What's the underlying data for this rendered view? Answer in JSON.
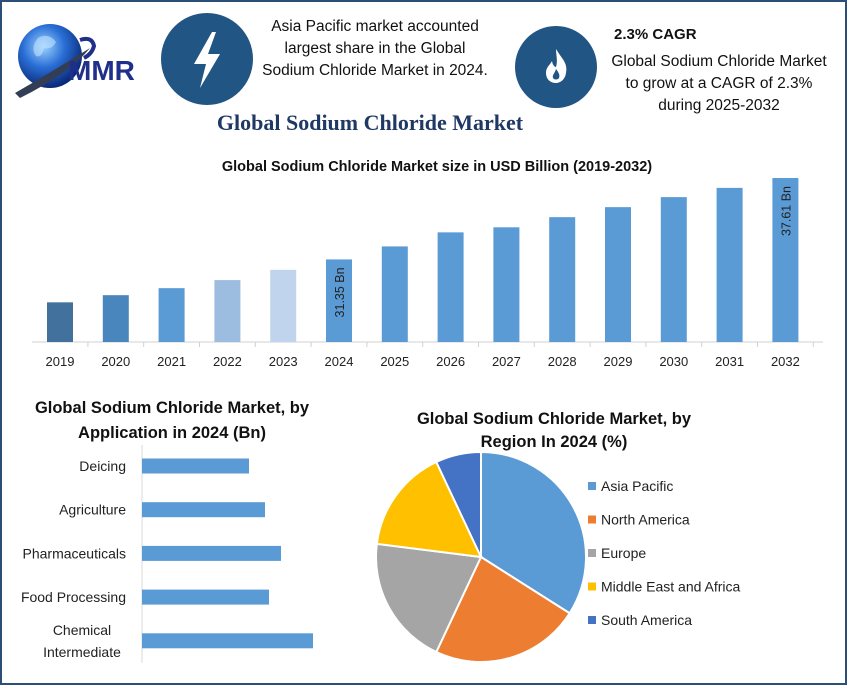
{
  "logo": {
    "text": "MMR"
  },
  "highlights": {
    "region": {
      "icon": "lightning-icon",
      "text": [
        "Asia Pacific market accounted",
        "largest share in the Global",
        "Sodium Chloride Market in 2024."
      ]
    },
    "cagr": {
      "icon": "flame-icon",
      "heading": "2.3% CAGR",
      "text": [
        "Global Sodium Chloride Market",
        "to grow at a CAGR of 2.3%",
        "during 2025-2032"
      ]
    }
  },
  "page_title": "Global Sodium Chloride Market",
  "colors": {
    "navy": "#1f3864",
    "icon_circle": "#215583",
    "bar": "#5b9bd5",
    "frame": "#2b4f78"
  },
  "chart_data": [
    {
      "type": "bar",
      "title": "Global Sodium Chloride Market size in USD Billion (2019-2032)",
      "categories": [
        "2019",
        "2020",
        "2021",
        "2022",
        "2023",
        "2024",
        "2025",
        "2026",
        "2027",
        "2028",
        "2029",
        "2030",
        "2031",
        "2032"
      ],
      "values": [
        28.05,
        28.6,
        29.14,
        29.76,
        30.55,
        31.35,
        32.35,
        33.43,
        33.82,
        34.6,
        35.37,
        36.14,
        36.85,
        37.61
      ],
      "bar_colors": [
        "#41719c",
        "#4a86be",
        "#5b9bd5",
        "#9dbde0",
        "#c0d4ee",
        "#5b9bd5",
        "#5b9bd5",
        "#5b9bd5",
        "#5b9bd5",
        "#5b9bd5",
        "#5b9bd5",
        "#5b9bd5",
        "#5b9bd5",
        "#5b9bd5"
      ],
      "data_labels": {
        "2024": "31.35 Bn",
        "2032": "37.61 Bn"
      },
      "ylim": [
        25,
        38
      ],
      "grid": false
    },
    {
      "type": "bar",
      "orientation": "horizontal",
      "title": [
        "Global Sodium Chloride Market, by",
        "Application in 2024 (Bn)"
      ],
      "categories": [
        "Deicing",
        "Agriculture",
        "Pharmaceuticals",
        "Food Processing",
        "Chemical Intermediate"
      ],
      "category_lines": [
        [
          "Deicing"
        ],
        [
          "Agriculture"
        ],
        [
          "Pharmaceuticals"
        ],
        [
          "Food Processing"
        ],
        [
          "Chemical",
          "Intermediate"
        ]
      ],
      "values": [
        10.7,
        12.3,
        13.9,
        12.7,
        17.1
      ],
      "color": "#5b9bd5",
      "grid": false
    },
    {
      "type": "pie",
      "title": [
        "Global Sodium Chloride Market, by",
        "Region In 2024 (%)"
      ],
      "labels": [
        "Asia Pacific",
        "North America",
        "Europe",
        "Middle East and Africa",
        "South America"
      ],
      "values": [
        34,
        23,
        20,
        16,
        7
      ],
      "colors": [
        "#5b9bd5",
        "#ed7d31",
        "#a5a5a5",
        "#ffc000",
        "#4472c4"
      ],
      "legend": "right"
    }
  ]
}
